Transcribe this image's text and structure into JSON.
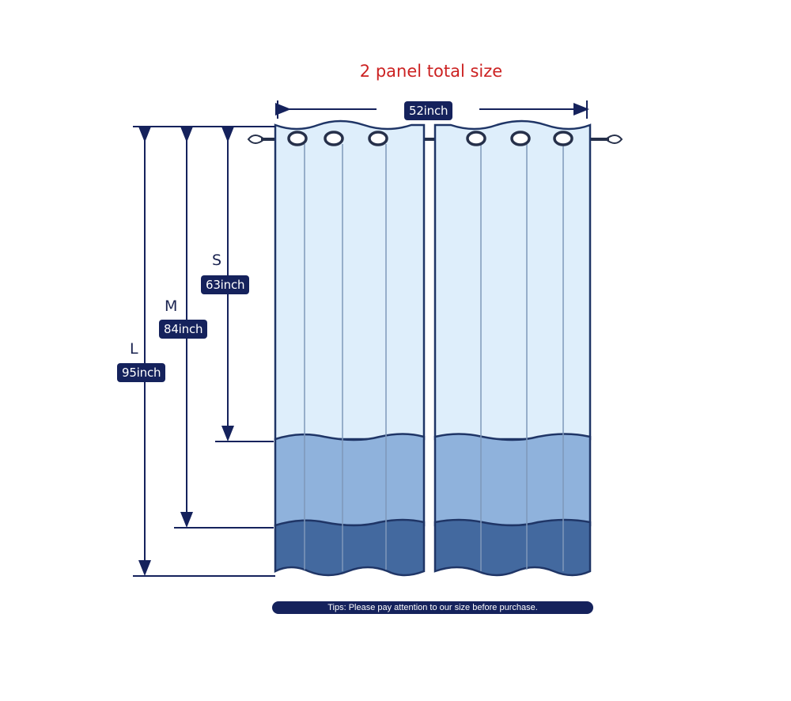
{
  "title": "2 panel total size",
  "width_label": "52inch",
  "sizes": [
    {
      "letter": "S",
      "length": "63inch"
    },
    {
      "letter": "M",
      "length": "84inch"
    },
    {
      "letter": "L",
      "length": "95inch"
    }
  ],
  "tips": "Tips: Please pay attention to our size before purchase.",
  "colors": {
    "navy": "#15225c",
    "title_red": "#cc2222",
    "panel_light": "#deeefb",
    "panel_mid": "#8fb2dc",
    "panel_dark": "#43699f"
  }
}
